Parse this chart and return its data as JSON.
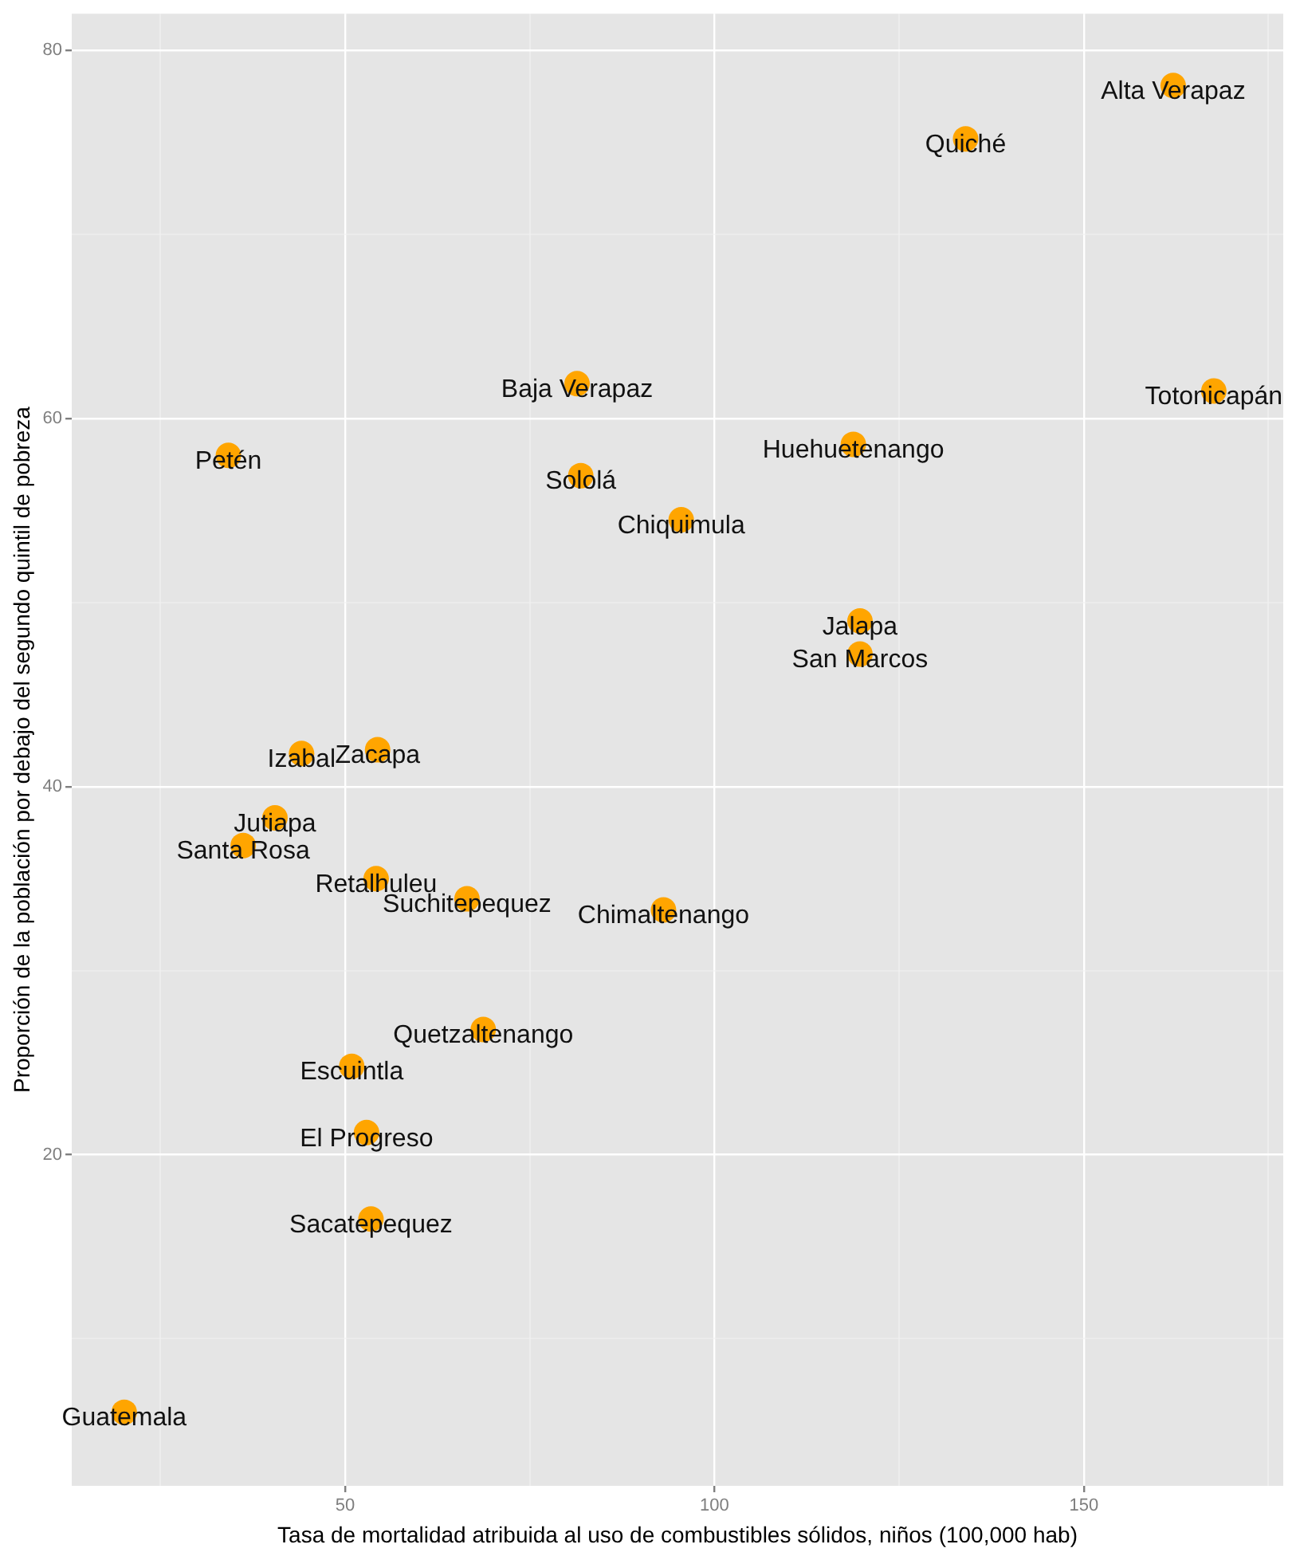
{
  "chart_data": {
    "type": "scatter",
    "xlabel": "Tasa de mortalidad atribuida al uso de combustibles sólidos, niños (100,000 hab)",
    "ylabel": "Proporción de la población por debajo del segundo quintil de pobreza",
    "x": [
      162.1,
      134,
      167.6,
      81.4,
      34.2,
      118.8,
      81.9,
      95.5,
      119.7,
      119.7,
      44.1,
      54.4,
      40.5,
      36.2,
      54.2,
      66.5,
      93.1,
      68.7,
      50.9,
      52.9,
      53.5,
      20.1
    ],
    "series": [
      {
        "color": "#ffa500",
        "values": [
          78.1,
          75.2,
          61.5,
          61.9,
          58.0,
          58.6,
          56.9,
          54.5,
          49.0,
          47.2,
          41.8,
          42.0,
          38.3,
          36.8,
          35.0,
          33.9,
          33.3,
          26.8,
          24.8,
          21.2,
          16.5,
          6.0
        ]
      }
    ],
    "xlim": [
      13,
      177
    ],
    "ylim": [
      2,
      82
    ],
    "xticks": [
      {
        "value": 25,
        "label": null
      },
      50,
      {
        "value": 75,
        "label": null
      },
      100,
      {
        "value": 125,
        "label": null
      },
      150,
      {
        "value": 175,
        "label": null
      }
    ],
    "yticks": [
      {
        "value": 10,
        "label": null
      },
      20,
      {
        "value": 30,
        "label": null
      },
      40,
      {
        "value": 50,
        "label": null
      },
      60,
      {
        "value": 70,
        "label": null
      },
      80
    ],
    "grid": true,
    "legend": false,
    "marker": "circle",
    "annotations": [
      {
        "text": "Alta Verapaz",
        "x": 162.1,
        "y": 78.1
      },
      {
        "text": "Quiché",
        "x": 134,
        "y": 75.2
      },
      {
        "text": "Totonicapán",
        "x": 167.6,
        "y": 61.5
      },
      {
        "text": "Baja Verapaz",
        "x": 81.4,
        "y": 61.9
      },
      {
        "text": "Petén",
        "x": 34.2,
        "y": 58.0
      },
      {
        "text": "Huehuetenango",
        "x": 118.8,
        "y": 58.6
      },
      {
        "text": "Sololá",
        "x": 81.9,
        "y": 56.9
      },
      {
        "text": "Chiquimula",
        "x": 95.5,
        "y": 54.5
      },
      {
        "text": "Jalapa",
        "x": 119.7,
        "y": 49.0
      },
      {
        "text": "San Marcos",
        "x": 119.7,
        "y": 47.2
      },
      {
        "text": "Izabal",
        "x": 44.1,
        "y": 41.8
      },
      {
        "text": "Zacapa",
        "x": 54.4,
        "y": 42.0
      },
      {
        "text": "Jutiapa",
        "x": 40.5,
        "y": 38.3
      },
      {
        "text": "Santa Rosa",
        "x": 36.2,
        "y": 36.8
      },
      {
        "text": "Retalhuleu",
        "x": 54.2,
        "y": 35.0
      },
      {
        "text": "Suchitepequez",
        "x": 66.5,
        "y": 33.9
      },
      {
        "text": "Chimaltenango",
        "x": 93.1,
        "y": 33.3
      },
      {
        "text": "Quetzaltenango",
        "x": 68.7,
        "y": 26.8
      },
      {
        "text": "Escuintla",
        "x": 50.9,
        "y": 24.8
      },
      {
        "text": "El Progreso",
        "x": 52.9,
        "y": 21.2
      },
      {
        "text": "Sacatepequez",
        "x": 53.5,
        "y": 16.5
      },
      {
        "text": "Guatemala",
        "x": 20.1,
        "y": 6.0
      }
    ]
  }
}
